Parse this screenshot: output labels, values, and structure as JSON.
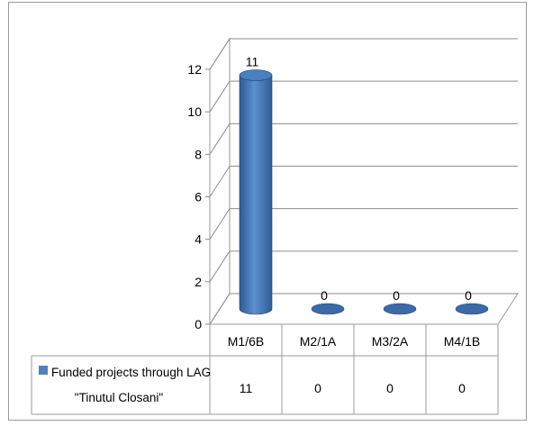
{
  "chart_data": {
    "type": "bar",
    "style": "3d-cylinder",
    "categories": [
      "M1/6B",
      "M2/1A",
      "M3/2A",
      "M4/1B"
    ],
    "series": [
      {
        "name": "Funded projects through LAG \"Tinutul Closani\"",
        "name_lines": [
          "Funded projects through LAG",
          "\"Tinutul Closani\""
        ],
        "values": [
          11,
          0,
          0,
          0
        ],
        "color": "#4f81bd"
      }
    ],
    "data_labels": [
      "11",
      "0",
      "0",
      "0"
    ],
    "yticks": [
      "0",
      "2",
      "4",
      "6",
      "8",
      "10",
      "12"
    ],
    "ylim": [
      0,
      12
    ],
    "grid": true,
    "legend": "data-table-left",
    "data_table": true
  }
}
